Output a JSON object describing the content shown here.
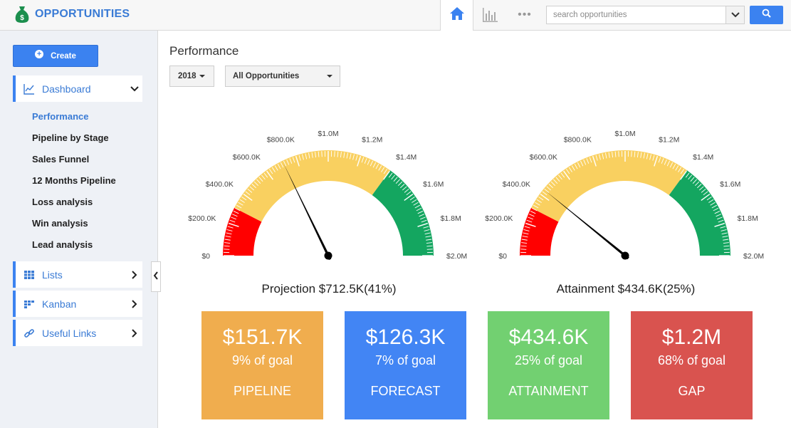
{
  "header": {
    "title": "OPPORTUNITIES",
    "brand_icon": "money-bag-icon",
    "search": {
      "placeholder": "search opportunities",
      "value": ""
    },
    "nav_icons": [
      "home-icon",
      "bar-chart-icon",
      "more-dots-icon"
    ],
    "more_label": "•••"
  },
  "sidebar": {
    "create_label": "Create",
    "groups": [
      {
        "label": "Dashboard",
        "icon": "line-chart-icon",
        "expanded": true
      },
      {
        "label": "Lists",
        "icon": "table-icon",
        "expanded": false
      },
      {
        "label": "Kanban",
        "icon": "kanban-icon",
        "expanded": false
      },
      {
        "label": "Useful Links",
        "icon": "link-icon",
        "expanded": false
      }
    ],
    "dashboard_items": [
      {
        "label": "Performance",
        "active": true
      },
      {
        "label": "Pipeline by Stage",
        "active": false
      },
      {
        "label": "Sales Funnel",
        "active": false
      },
      {
        "label": "12 Months Pipeline",
        "active": false
      },
      {
        "label": "Loss analysis",
        "active": false
      },
      {
        "label": "Win analysis",
        "active": false
      },
      {
        "label": "Lead analysis",
        "active": false
      }
    ]
  },
  "main": {
    "title": "Performance",
    "year_select": "2018",
    "scope_select": "All Opportunities",
    "gauges": [
      {
        "caption": "Projection $712.5K(41%)",
        "value": 712.5
      },
      {
        "caption": "Attainment $434.6K(25%)",
        "value": 434.6
      }
    ],
    "gauge_scale": {
      "min": 0,
      "max": 2000,
      "tick_labels": [
        "$0",
        "$200.0K",
        "$400.0K",
        "$600.0K",
        "$800.0K",
        "$1.0M",
        "$1.2M",
        "$1.4M",
        "$1.6M",
        "$1.8M",
        "$2.0M"
      ],
      "bands": [
        {
          "from": 0,
          "to": 300,
          "color": "#ff0000"
        },
        {
          "from": 300,
          "to": 1400,
          "color": "#f9d060"
        },
        {
          "from": 1400,
          "to": 2000,
          "color": "#14a660"
        }
      ]
    },
    "tiles": [
      {
        "amount": "$151.7K",
        "goal": "9% of goal",
        "label": "PIPELINE",
        "color": "#f0ad4e"
      },
      {
        "amount": "$126.3K",
        "goal": "7% of goal",
        "label": "FORECAST",
        "color": "#4285f4"
      },
      {
        "amount": "$434.6K",
        "goal": "25% of goal",
        "label": "ATTAINMENT",
        "color": "#72d071"
      },
      {
        "amount": "$1.2M",
        "goal": "68% of goal",
        "label": "GAP",
        "color": "#d9534f"
      }
    ]
  }
}
